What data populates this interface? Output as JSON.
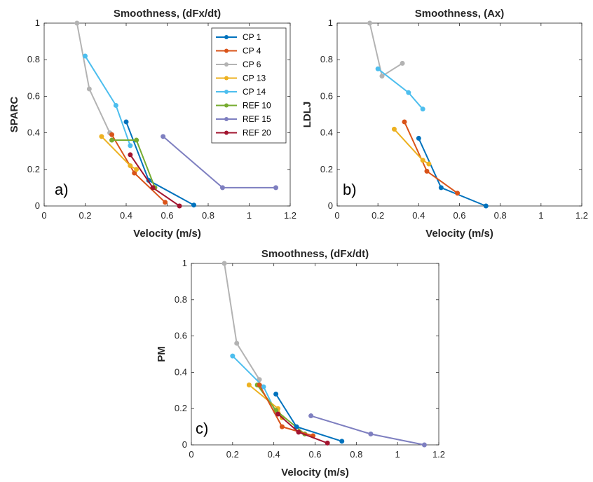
{
  "colors": {
    "CP 1": "#0072BD",
    "CP 4": "#D95319",
    "CP 6": "#B3B3B3",
    "CP 13": "#EDB120",
    "CP 14": "#4DBEEE",
    "REF 10": "#77AC30",
    "REF 15": "#7E7FC0",
    "REF 20": "#A2142F"
  },
  "chart_data": [
    {
      "id": "a",
      "type": "line",
      "panel_label": "a)",
      "title": "Smoothness, (dFx/dt)",
      "xlabel": "Velocity (m/s)",
      "ylabel": "SPARC",
      "xlim": [
        0,
        1.2
      ],
      "ylim": [
        0,
        1
      ],
      "xticks": [
        "0",
        "0.2",
        "0.4",
        "0.6",
        "0.8",
        "1",
        "1.2"
      ],
      "yticks": [
        "0",
        "0.2",
        "0.4",
        "0.6",
        "0.8",
        "1"
      ],
      "legend": {
        "location": "top-right",
        "entries": [
          "CP 1",
          "CP 4",
          "CP 6",
          "CP 13",
          "CP 14",
          "REF 10",
          "REF 15",
          "REF 20"
        ]
      },
      "series": [
        {
          "name": "CP 6",
          "x": [
            0.16,
            0.22,
            0.32
          ],
          "y": [
            1.0,
            0.64,
            0.4
          ]
        },
        {
          "name": "CP 14",
          "x": [
            0.2,
            0.35,
            0.42
          ],
          "y": [
            0.82,
            0.55,
            0.33
          ]
        },
        {
          "name": "CP 1",
          "x": [
            0.4,
            0.51,
            0.73
          ],
          "y": [
            0.46,
            0.14,
            0.005
          ]
        },
        {
          "name": "CP 4",
          "x": [
            0.33,
            0.44,
            0.59
          ],
          "y": [
            0.39,
            0.18,
            0.02
          ]
        },
        {
          "name": "CP 13",
          "x": [
            0.28,
            0.42,
            0.45
          ],
          "y": [
            0.38,
            0.22,
            0.2
          ]
        },
        {
          "name": "REF 10",
          "x": [
            0.33,
            0.45,
            0.54
          ],
          "y": [
            0.36,
            0.36,
            0.1
          ]
        },
        {
          "name": "REF 20",
          "x": [
            0.42,
            0.53,
            0.66
          ],
          "y": [
            0.28,
            0.1,
            0.0
          ]
        },
        {
          "name": "REF 15",
          "x": [
            0.58,
            0.87,
            1.13
          ],
          "y": [
            0.38,
            0.1,
            0.1
          ]
        }
      ]
    },
    {
      "id": "b",
      "type": "line",
      "panel_label": "b)",
      "title": "Smoothness, (Ax)",
      "xlabel": "Velocity (m/s)",
      "ylabel": "LDLJ",
      "xlim": [
        0,
        1.2
      ],
      "ylim": [
        0,
        1
      ],
      "xticks": [
        "0",
        "0.2",
        "0.4",
        "0.6",
        "0.8",
        "1",
        "1.2"
      ],
      "yticks": [
        "0",
        "0.2",
        "0.4",
        "0.6",
        "0.8",
        "1"
      ],
      "series": [
        {
          "name": "CP 6",
          "x": [
            0.16,
            0.22,
            0.32
          ],
          "y": [
            1.0,
            0.71,
            0.78
          ]
        },
        {
          "name": "CP 14",
          "x": [
            0.2,
            0.35,
            0.42
          ],
          "y": [
            0.75,
            0.62,
            0.53
          ]
        },
        {
          "name": "CP 1",
          "x": [
            0.4,
            0.51,
            0.73
          ],
          "y": [
            0.37,
            0.1,
            0.0
          ]
        },
        {
          "name": "CP 4",
          "x": [
            0.33,
            0.44,
            0.59
          ],
          "y": [
            0.46,
            0.19,
            0.07
          ]
        },
        {
          "name": "CP 13",
          "x": [
            0.28,
            0.42,
            0.45
          ],
          "y": [
            0.42,
            0.25,
            0.23
          ]
        }
      ]
    },
    {
      "id": "c",
      "type": "line",
      "panel_label": "c)",
      "title": "Smoothness, (dFx/dt)",
      "xlabel": "Velocity (m/s)",
      "ylabel": "PM",
      "xlim": [
        0,
        1.2
      ],
      "ylim": [
        0,
        1
      ],
      "xticks": [
        "0",
        "0.2",
        "0.4",
        "0.6",
        "0.8",
        "1",
        "1.2"
      ],
      "yticks": [
        "0",
        "0.2",
        "0.4",
        "0.6",
        "0.8",
        "1"
      ],
      "series": [
        {
          "name": "CP 6",
          "x": [
            0.16,
            0.22,
            0.33
          ],
          "y": [
            1.0,
            0.56,
            0.36
          ]
        },
        {
          "name": "CP 14",
          "x": [
            0.2,
            0.35,
            0.41
          ],
          "y": [
            0.49,
            0.32,
            0.18
          ]
        },
        {
          "name": "CP 13",
          "x": [
            0.28,
            0.42,
            0.44
          ],
          "y": [
            0.33,
            0.2,
            0.15
          ]
        },
        {
          "name": "REF 10",
          "x": [
            0.32,
            0.41,
            0.55
          ],
          "y": [
            0.33,
            0.19,
            0.06
          ]
        },
        {
          "name": "CP 1",
          "x": [
            0.41,
            0.51,
            0.73
          ],
          "y": [
            0.28,
            0.1,
            0.02
          ]
        },
        {
          "name": "CP 4",
          "x": [
            0.33,
            0.44,
            0.59
          ],
          "y": [
            0.33,
            0.1,
            0.05
          ]
        },
        {
          "name": "REF 20",
          "x": [
            0.42,
            0.52,
            0.66
          ],
          "y": [
            0.17,
            0.07,
            0.01
          ]
        },
        {
          "name": "REF 15",
          "x": [
            0.58,
            0.87,
            1.13
          ],
          "y": [
            0.16,
            0.06,
            0.0
          ]
        }
      ]
    }
  ]
}
